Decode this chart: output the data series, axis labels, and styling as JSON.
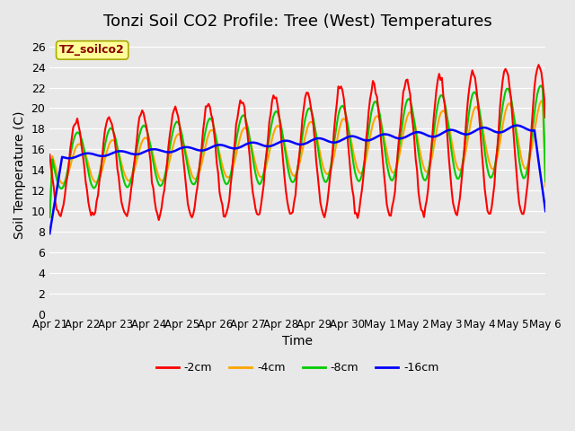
{
  "title": "Tonzi Soil CO2 Profile: Tree (West) Temperatures",
  "xlabel": "Time",
  "ylabel": "Soil Temperature (C)",
  "ylim": [
    0,
    27
  ],
  "yticks": [
    0,
    2,
    4,
    6,
    8,
    10,
    12,
    14,
    16,
    18,
    20,
    22,
    24,
    26
  ],
  "legend_label": "TZ_soilco2",
  "legend_text_color": "#8B0000",
  "legend_box_color": "#FFFF99",
  "series_labels": [
    "-2cm",
    "-4cm",
    "-8cm",
    "-16cm"
  ],
  "series_colors": [
    "#FF0000",
    "#FFA500",
    "#00CC00",
    "#0000FF"
  ],
  "background_color": "#E8E8E8",
  "plot_bg_color": "#E8E8E8",
  "title_fontsize": 13,
  "axis_fontsize": 10,
  "tick_fontsize": 9,
  "line_width": 1.5,
  "xtick_labels": [
    "Apr 21",
    "Apr 22",
    "Apr 23",
    "Apr 24",
    "Apr 25",
    "Apr 26",
    "Apr 27",
    "Apr 28",
    "Apr 29",
    "Apr 30",
    "May 1",
    "May 2",
    "May 3",
    "May 4",
    "May 5",
    "May 6"
  ],
  "num_days": 15,
  "points_per_day": 24
}
